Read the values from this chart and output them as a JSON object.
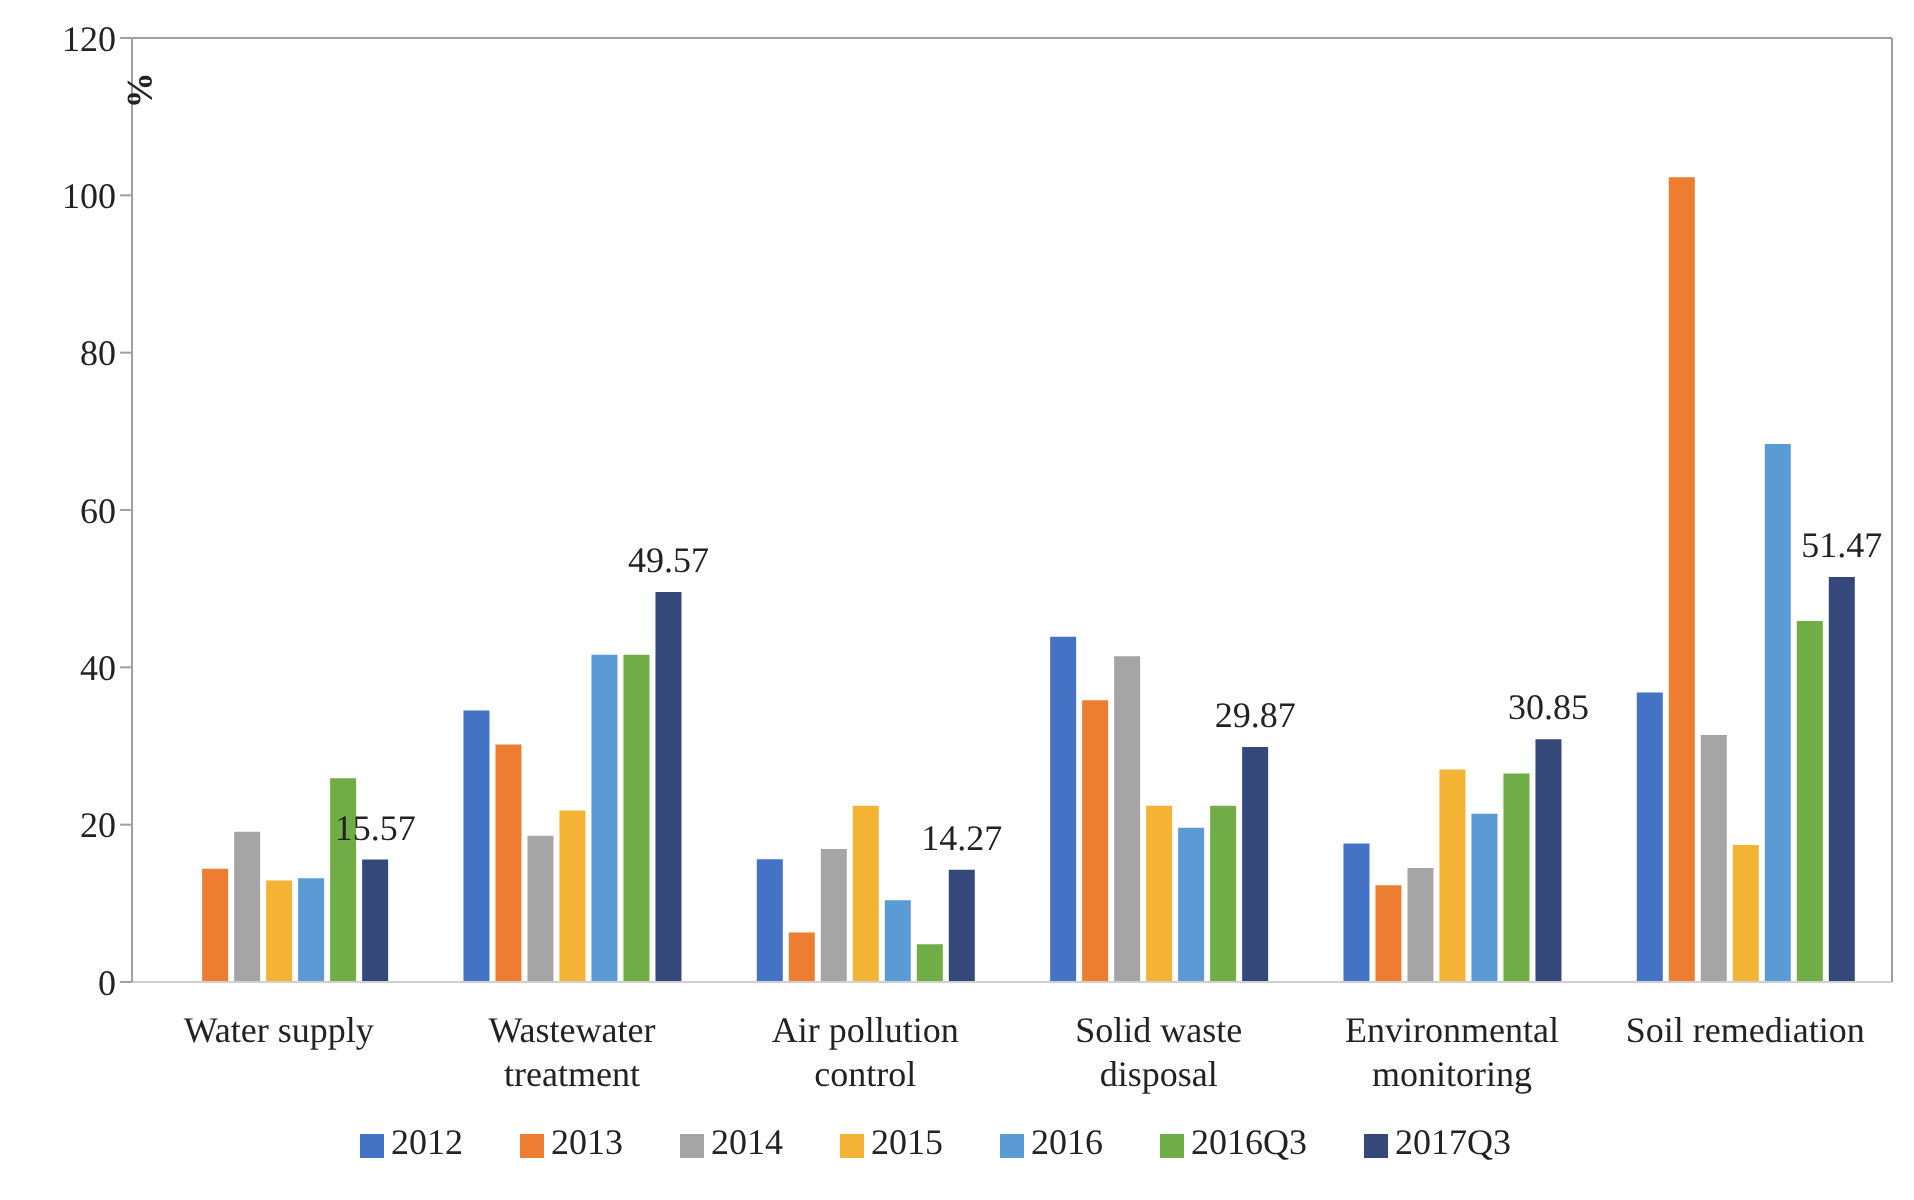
{
  "chart_data": {
    "type": "bar",
    "ylabel": "%",
    "categories": [
      "Water supply",
      "Wastewater treatment",
      "Air pollution control",
      "Solid waste disposal",
      "Environmental monitoring",
      "Soil remediation"
    ],
    "series": [
      {
        "name": "2012",
        "color": "#4472c4",
        "values": [
          0,
          34.5,
          15.6,
          43.9,
          17.6,
          36.8
        ]
      },
      {
        "name": "2013",
        "color": "#ed7d31",
        "values": [
          14.4,
          30.2,
          6.3,
          35.8,
          12.3,
          102.3
        ]
      },
      {
        "name": "2014",
        "color": "#a5a5a5",
        "values": [
          19.1,
          18.6,
          16.9,
          41.4,
          14.5,
          31.4
        ]
      },
      {
        "name": "2015",
        "color": "#f4b334",
        "values": [
          12.9,
          21.8,
          22.4,
          22.4,
          27.0,
          17.4
        ]
      },
      {
        "name": "2016",
        "color": "#5b9bd5",
        "values": [
          13.2,
          41.6,
          10.4,
          19.6,
          21.4,
          68.4
        ]
      },
      {
        "name": "2016Q3",
        "color": "#70ad47",
        "values": [
          25.9,
          41.6,
          4.8,
          22.4,
          26.5,
          45.9
        ]
      },
      {
        "name": "2017Q3",
        "color": "#34497a",
        "values": [
          15.57,
          49.57,
          14.27,
          29.87,
          30.85,
          51.47
        ],
        "value_labels": [
          "15.57",
          "49.57",
          "14.27",
          "29.87",
          "30.85",
          "51.47"
        ]
      }
    ],
    "ylim": [
      0,
      120
    ],
    "yticks": [
      0,
      20,
      40,
      60,
      80,
      100,
      120
    ],
    "legend": "bottom"
  }
}
